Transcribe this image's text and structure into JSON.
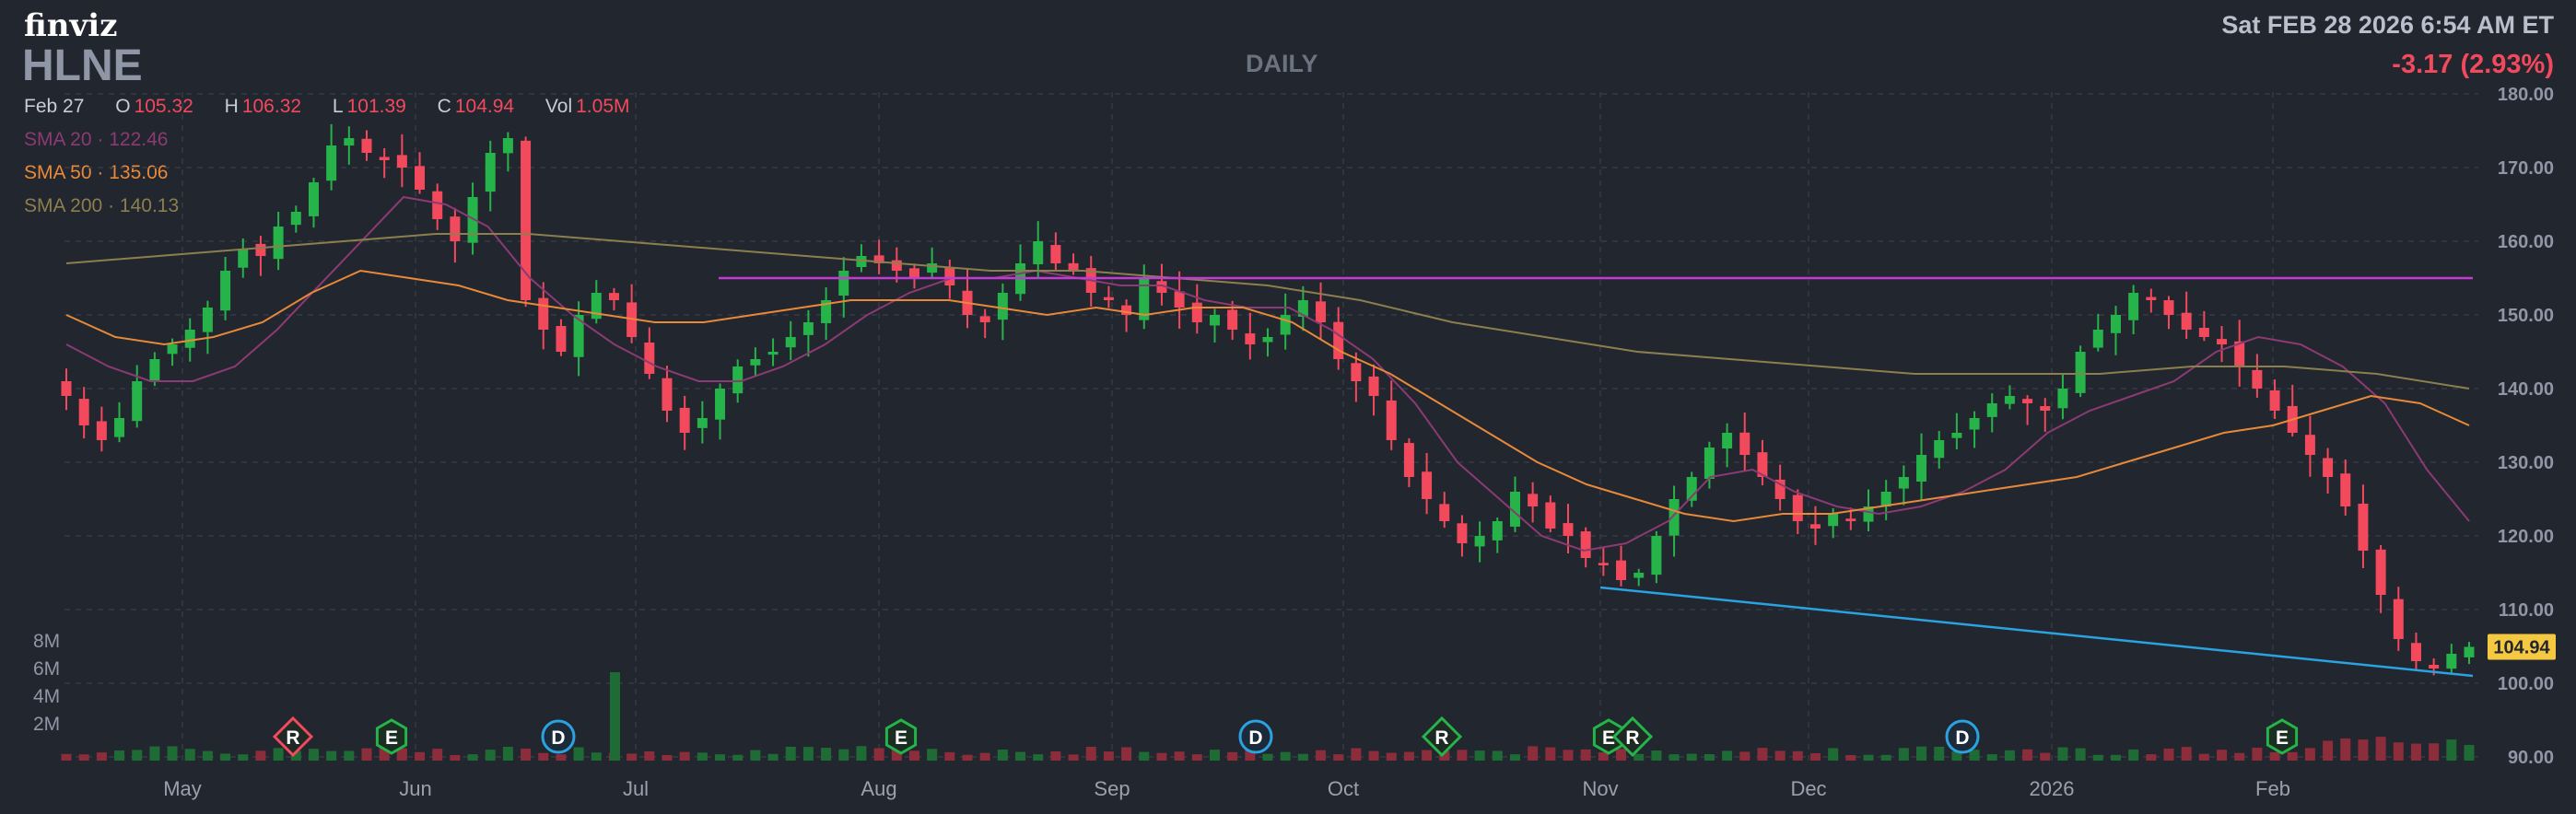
{
  "header": {
    "logo": "finviz",
    "ticker": "HLNE",
    "timeframe": "DAILY",
    "datetime": "Sat FEB 28 2026 6:54 AM ET",
    "change": "-3.17 (2.93%)"
  },
  "ohlc": {
    "date": "Feb 27",
    "open_label": "O",
    "open": "105.32",
    "high_label": "H",
    "high": "106.32",
    "low_label": "L",
    "low": "101.39",
    "close_label": "C",
    "close": "104.94",
    "vol_label": "Vol",
    "vol": "1.05M"
  },
  "indicators": {
    "sma20": {
      "label": "SMA 20",
      "value": "122.46",
      "color": "#8b3a73"
    },
    "sma50": {
      "label": "SMA 50",
      "value": "135.06",
      "color": "#e8893a"
    },
    "sma200": {
      "label": "SMA 200",
      "value": "140.13",
      "color": "#8c7f4e"
    }
  },
  "colors": {
    "up": "#26b34a",
    "down": "#f2495c",
    "resistance": "#c23bd4",
    "support": "#2aa3e0",
    "price_tag": "#f5c842"
  },
  "chart_data": {
    "type": "candlestick",
    "y_ticks": [
      "180.00",
      "170.00",
      "160.00",
      "150.00",
      "140.00",
      "130.00",
      "120.00",
      "110.00",
      "100.00",
      "90.00"
    ],
    "ylim": [
      90,
      180
    ],
    "x_ticks": [
      "May",
      "Jun",
      "Jul",
      "Aug",
      "Sep",
      "Oct",
      "Nov",
      "Dec",
      "2026",
      "Feb"
    ],
    "volume_ticks": [
      "8M",
      "6M",
      "4M",
      "2M"
    ],
    "last_price": "104.94",
    "resistance_level": 155,
    "support_line": {
      "from": 113,
      "to": 101
    },
    "series": [
      {
        "name": "SMA 20",
        "values": [
          146,
          143,
          141,
          141,
          143,
          148,
          154,
          160,
          166,
          165,
          162,
          155,
          150,
          146,
          143,
          141,
          141,
          143,
          146,
          150,
          153,
          155,
          155,
          156,
          155,
          154,
          154,
          152,
          151,
          151,
          148,
          144,
          138,
          130,
          125,
          120,
          118,
          119,
          122,
          128,
          129,
          126,
          124,
          123,
          124,
          126,
          129,
          134,
          137,
          139,
          141,
          145,
          147,
          146,
          143,
          138,
          129,
          122
        ]
      },
      {
        "name": "SMA 50",
        "values": [
          150,
          147,
          146,
          147,
          149,
          153,
          156,
          155,
          154,
          152,
          151,
          150,
          149,
          149,
          150,
          151,
          152,
          152,
          152,
          151,
          150,
          151,
          150,
          151,
          151,
          149,
          145,
          142,
          138,
          134,
          130,
          127,
          125,
          123,
          122,
          123,
          123,
          124,
          125,
          126,
          127,
          128,
          130,
          132,
          134,
          135,
          137,
          139,
          138,
          135
        ]
      },
      {
        "name": "SMA 200",
        "values": [
          157,
          158,
          159,
          160,
          161,
          161,
          160,
          159,
          158,
          157,
          156,
          156,
          155,
          154,
          152,
          149,
          147,
          145,
          144,
          143,
          142,
          142,
          142,
          143,
          143,
          142,
          140
        ]
      }
    ],
    "event_markers": [
      {
        "label": "R",
        "kind": "diamond",
        "color": "#f2495c"
      },
      {
        "label": "E",
        "kind": "hex",
        "color": "#26b34a"
      },
      {
        "label": "D",
        "kind": "circle",
        "color": "#2aa3e0"
      },
      {
        "label": "E",
        "kind": "hex",
        "color": "#26b34a"
      },
      {
        "label": "D",
        "kind": "circle",
        "color": "#2aa3e0"
      },
      {
        "label": "R",
        "kind": "diamond",
        "color": "#26b34a"
      },
      {
        "label": "E",
        "kind": "hex",
        "color": "#26b34a"
      },
      {
        "label": "R",
        "kind": "diamond",
        "color": "#26b34a"
      },
      {
        "label": "D",
        "kind": "circle",
        "color": "#2aa3e0"
      },
      {
        "label": "E",
        "kind": "hex",
        "color": "#26b34a"
      }
    ],
    "closes": [
      139,
      135,
      133,
      136,
      141,
      144,
      146,
      148,
      151,
      156,
      159,
      158,
      162,
      164,
      168,
      173,
      174,
      172,
      171,
      170,
      167,
      163,
      160,
      166,
      172,
      174,
      152,
      148,
      145,
      150,
      153,
      152,
      147,
      142,
      137,
      134,
      136,
      140,
      143,
      144,
      145,
      147,
      149,
      152,
      156,
      158,
      157,
      156,
      155,
      157,
      154,
      150,
      149,
      153,
      157,
      160,
      157,
      156,
      153,
      152,
      150,
      155,
      153,
      151,
      149,
      150,
      148,
      146,
      147,
      150,
      152,
      149,
      144,
      141,
      139,
      133,
      128,
      125,
      122,
      119,
      120,
      122,
      126,
      124,
      121,
      120,
      117,
      116,
      114,
      115,
      120,
      125,
      128,
      132,
      134,
      131,
      128,
      125,
      122,
      121,
      123,
      122,
      124,
      126,
      128,
      131,
      133,
      134,
      136,
      138,
      139,
      138,
      137,
      140,
      145,
      148,
      150,
      153,
      152,
      150,
      148,
      147,
      146,
      143,
      140,
      137,
      134,
      131,
      128,
      124,
      118,
      112,
      106,
      103,
      102,
      104,
      104.94
    ]
  }
}
